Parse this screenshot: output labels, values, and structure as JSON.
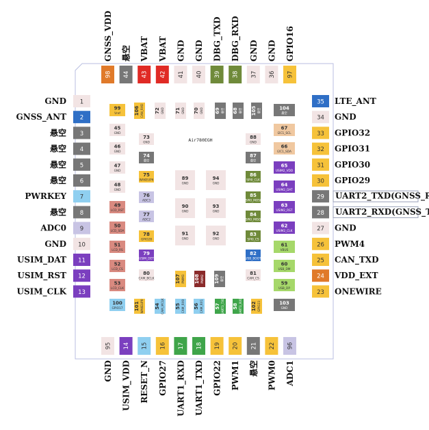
{
  "chip": {
    "title": "Air780EGH"
  },
  "colors": {
    "outline": "#b8bee0",
    "gnd": "#f2e4e4",
    "nc": "#777777",
    "blue": "#2f6fc6",
    "purple": "#7b3fbf",
    "lilac": "#c8c4e4",
    "lightblue": "#8fcff0",
    "yellow": "#f6c23a",
    "orange": "#e07a2a",
    "red": "#e02a25",
    "olive": "#6f8a3a",
    "green": "#3fa54a",
    "lightgreen": "#a6d86a",
    "salmon": "#d98a80",
    "peach": "#f0c8a0",
    "darkred": "#8a2a2a"
  },
  "left_pins": [
    {
      "num": "1",
      "label": "GND",
      "color": "gnd"
    },
    {
      "num": "2",
      "label": "GNSS_ANT",
      "color": "blue"
    },
    {
      "num": "3",
      "label": "悬空",
      "color": "nc"
    },
    {
      "num": "4",
      "label": "悬空",
      "color": "nc"
    },
    {
      "num": "5",
      "label": "悬空",
      "color": "nc"
    },
    {
      "num": "6",
      "label": "悬空",
      "color": "nc"
    },
    {
      "num": "7",
      "label": "PWRKEY",
      "color": "lightblue"
    },
    {
      "num": "8",
      "label": "悬空",
      "color": "nc"
    },
    {
      "num": "9",
      "label": "ADC0",
      "color": "lilac"
    },
    {
      "num": "10",
      "label": "GND",
      "color": "gnd"
    },
    {
      "num": "11",
      "label": "USIM_DAT",
      "color": "purple"
    },
    {
      "num": "12",
      "label": "USIM_RST",
      "color": "purple"
    },
    {
      "num": "13",
      "label": "USIM_CLK",
      "color": "purple"
    }
  ],
  "right_pins": [
    {
      "num": "35",
      "label": "LTE_ANT",
      "color": "blue",
      "boxed": false
    },
    {
      "num": "34",
      "label": "GND",
      "color": "gnd",
      "boxed": false
    },
    {
      "num": "33",
      "label": "GPIO32",
      "color": "yellow",
      "boxed": false
    },
    {
      "num": "32",
      "label": "GPIO31",
      "color": "yellow",
      "boxed": false
    },
    {
      "num": "31",
      "label": "GPIO30",
      "color": "yellow",
      "boxed": false
    },
    {
      "num": "30",
      "label": "GPIO29",
      "color": "yellow",
      "boxed": false
    },
    {
      "num": "29",
      "label": "UART2_TXD(GNSS_RXD)!!!",
      "color": "nc",
      "boxed": true
    },
    {
      "num": "28",
      "label": "UART2_RXD(GNSS_TXD)!!!",
      "color": "nc",
      "boxed": true
    },
    {
      "num": "27",
      "label": "GND",
      "color": "gnd",
      "boxed": false
    },
    {
      "num": "26",
      "label": "PWM4",
      "color": "yellow",
      "boxed": false
    },
    {
      "num": "25",
      "label": "CAN_TXD",
      "color": "yellow",
      "boxed": false
    },
    {
      "num": "24",
      "label": "VDD_EXT",
      "color": "orange",
      "boxed": false
    },
    {
      "num": "23",
      "label": "ONEWIRE",
      "color": "yellow",
      "boxed": false
    }
  ],
  "top_pins": [
    {
      "num": "98",
      "label": "GNSS_VDD",
      "color": "orange"
    },
    {
      "num": "44",
      "label": "悬空",
      "color": "nc"
    },
    {
      "num": "43",
      "label": "VBAT",
      "color": "red"
    },
    {
      "num": "42",
      "label": "VBAT",
      "color": "red"
    },
    {
      "num": "41",
      "label": "GND",
      "color": "gnd"
    },
    {
      "num": "40",
      "label": "GND",
      "color": "gnd"
    },
    {
      "num": "39",
      "label": "DBG_TXD",
      "color": "olive"
    },
    {
      "num": "38",
      "label": "DBG_RXD",
      "color": "olive"
    },
    {
      "num": "37",
      "label": "GND",
      "color": "gnd"
    },
    {
      "num": "36",
      "label": "GND",
      "color": "gnd"
    },
    {
      "num": "97",
      "label": "GPIO16",
      "color": "yellow"
    }
  ],
  "bottom_pins": [
    {
      "num": "95",
      "label": "GND",
      "color": "gnd"
    },
    {
      "num": "14",
      "label": "USIM_VDD",
      "color": "purple"
    },
    {
      "num": "15",
      "label": "RESET_N",
      "color": "lightblue"
    },
    {
      "num": "16",
      "label": "GPIO27",
      "color": "yellow"
    },
    {
      "num": "17",
      "label": "UART1_RXD",
      "color": "green"
    },
    {
      "num": "18",
      "label": "UART1_TXD",
      "color": "green"
    },
    {
      "num": "19",
      "label": "GPIO22",
      "color": "yellow"
    },
    {
      "num": "20",
      "label": "PWM1",
      "color": "yellow"
    },
    {
      "num": "21",
      "label": "悬空",
      "color": "nc"
    },
    {
      "num": "22",
      "label": "PWM0",
      "color": "yellow"
    },
    {
      "num": "96",
      "label": "ADC1",
      "color": "lilac"
    }
  ],
  "inner_pads": {
    "col_a": [
      {
        "num": "99",
        "name": "Vref",
        "color": "yellow"
      },
      {
        "num": "45",
        "name": "GND",
        "color": "gnd"
      },
      {
        "num": "46",
        "name": "GND",
        "color": "gnd"
      },
      {
        "num": "47",
        "name": "GND",
        "color": "gnd"
      },
      {
        "num": "48",
        "name": "GND",
        "color": "gnd"
      },
      {
        "num": "49",
        "name": "LCD_RST",
        "color": "salmon"
      },
      {
        "num": "50",
        "name": "LCD_SDA",
        "color": "salmon"
      },
      {
        "num": "51",
        "name": "LCD_RS",
        "color": "salmon"
      },
      {
        "num": "52",
        "name": "LCD_CS",
        "color": "salmon"
      },
      {
        "num": "53",
        "name": "LCD_CLK",
        "color": "salmon"
      },
      {
        "num": "100",
        "name": "GPIO17",
        "color": "lightblue"
      }
    ],
    "col_b": [
      {
        "num": "73",
        "name": "GND",
        "color": "gnd"
      },
      {
        "num": "74",
        "name": "悬空",
        "color": "nc"
      },
      {
        "num": "75",
        "name": "WAKEUP6",
        "color": "yellow"
      },
      {
        "num": "76",
        "name": "ADC3",
        "color": "lilac"
      },
      {
        "num": "77",
        "name": "ADC2",
        "color": "lilac"
      },
      {
        "num": "78",
        "name": "GPIO28",
        "color": "yellow"
      },
      {
        "num": "79",
        "name": "USIM_DET",
        "color": "purple"
      },
      {
        "num": "80",
        "name": "CAM_BCLK",
        "color": "gnd"
      }
    ],
    "col_c": [
      {
        "num": "88",
        "name": "GND",
        "color": "gnd"
      },
      {
        "num": "87",
        "name": "悬空",
        "color": "nc"
      },
      {
        "num": "86",
        "name": "SPI0_CLK",
        "color": "olive"
      },
      {
        "num": "85",
        "name": "SPI0_MOSI",
        "color": "olive"
      },
      {
        "num": "84",
        "name": "SPI0_MISO",
        "color": "olive"
      },
      {
        "num": "83",
        "name": "SPI0_CS",
        "color": "olive"
      },
      {
        "num": "82",
        "name": "USB_BOOT",
        "color": "blue"
      },
      {
        "num": "81",
        "name": "CAM_CS",
        "color": "gnd"
      }
    ],
    "col_d": [
      {
        "num": "104",
        "name": "悬空",
        "color": "nc"
      },
      {
        "num": "67",
        "name": "I2C1_SCL",
        "color": "peach"
      },
      {
        "num": "66",
        "name": "I2C1_SDA",
        "color": "peach"
      },
      {
        "num": "65",
        "name": "USIM2_VDD",
        "color": "purple"
      },
      {
        "num": "64",
        "name": "USIM2_DAT",
        "color": "purple"
      },
      {
        "num": "63",
        "name": "USIM2_RST",
        "color": "purple"
      },
      {
        "num": "62",
        "name": "USIM2_CLK",
        "color": "purple"
      },
      {
        "num": "61",
        "name": "VBUS",
        "color": "lightgreen"
      },
      {
        "num": "60",
        "name": "USB_DM",
        "color": "lightgreen"
      },
      {
        "num": "59",
        "name": "USB_DP",
        "color": "lightgreen"
      },
      {
        "num": "103",
        "name": "GND",
        "color": "nc"
      }
    ],
    "top_row": [
      {
        "num": "106",
        "name": "CAN_RXD",
        "color": "yellow"
      },
      {
        "num": "72",
        "name": "GND",
        "color": "gnd"
      },
      {
        "num": "71",
        "name": "GND",
        "color": "gnd"
      },
      {
        "num": "70",
        "name": "GND",
        "color": "gnd"
      },
      {
        "num": "69",
        "name": "悬空",
        "color": "nc"
      },
      {
        "num": "68",
        "name": "悬空",
        "color": "nc"
      },
      {
        "num": "105",
        "name": "悬空",
        "color": "nc"
      }
    ],
    "bottom_row": [
      {
        "num": "101",
        "name": "WAKEUP0",
        "color": "yellow"
      },
      {
        "num": "54",
        "name": "CAM_MCLK",
        "color": "lightblue"
      },
      {
        "num": "55",
        "name": "CAM_RX0",
        "color": "lightblue"
      },
      {
        "num": "56",
        "name": "CAM_RX1",
        "color": "lightblue"
      },
      {
        "num": "57",
        "name": "UART3_TXD",
        "color": "green"
      },
      {
        "num": "58",
        "name": "UART3_RXD",
        "color": "green"
      },
      {
        "num": "102",
        "name": "GPIO23",
        "color": "yellow"
      }
    ],
    "mid_small": [
      {
        "num": "107",
        "name": "PWM3",
        "color": "yellow"
      },
      {
        "num": "108",
        "name": "PWM2",
        "color": "darkred"
      },
      {
        "num": "109",
        "name": "悬空",
        "color": "nc"
      }
    ],
    "center": [
      {
        "num": "89",
        "name": "GND",
        "color": "gnd"
      },
      {
        "num": "94",
        "name": "GND",
        "color": "gnd"
      },
      {
        "num": "90",
        "name": "GND",
        "color": "gnd"
      },
      {
        "num": "93",
        "name": "GND",
        "color": "gnd"
      },
      {
        "num": "91",
        "name": "GND",
        "color": "gnd"
      },
      {
        "num": "92",
        "name": "GND",
        "color": "gnd"
      }
    ]
  }
}
